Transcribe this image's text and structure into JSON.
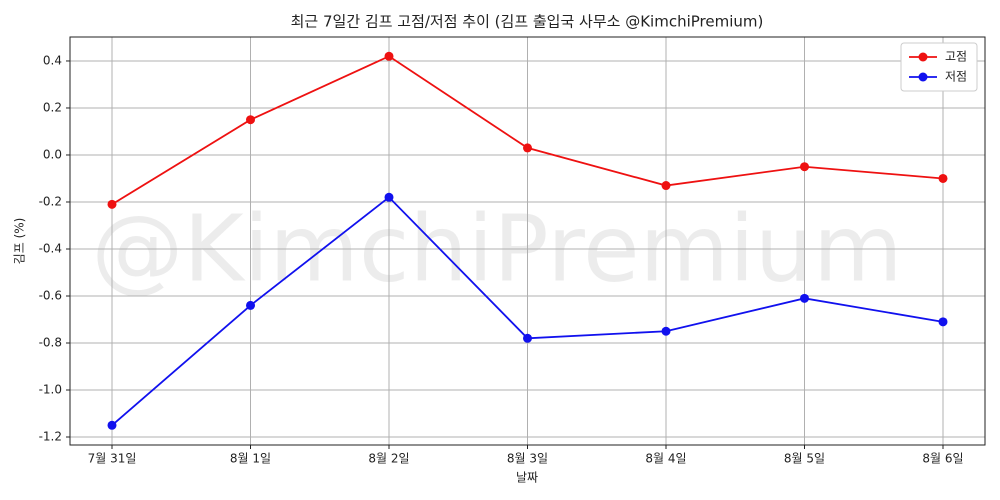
{
  "chart_data": {
    "type": "line",
    "title": "최근 7일간 김프 고점/저점 추이 (김프 출입국 사무소 @KimchiPremium)",
    "watermark": "@KimchiPremium",
    "x_label": "날짜",
    "y_label": "김프 (%)",
    "categories": [
      "7월 31일",
      "8월 1일",
      "8월 2일",
      "8월 3일",
      "8월 4일",
      "8월 5일",
      "8월 6일"
    ],
    "series": [
      {
        "name": "고점",
        "color": "#ee1111",
        "values": [
          -0.21,
          0.15,
          0.42,
          0.03,
          -0.13,
          -0.05,
          -0.1
        ]
      },
      {
        "name": "저점",
        "color": "#1111ee",
        "values": [
          -1.15,
          -0.64,
          -0.18,
          -0.78,
          -0.75,
          -0.61,
          -0.71
        ]
      }
    ],
    "ylim": [
      -1.234,
      0.502
    ],
    "yticks": [
      -1.2,
      {
        "value": -1.0,
        "label": "-1.0"
      },
      -0.8,
      -0.6,
      -0.4,
      -0.2,
      {
        "value": 0,
        "label": "0.0"
      },
      0.2,
      0.4
    ],
    "grid": true,
    "legend": "upper right"
  }
}
